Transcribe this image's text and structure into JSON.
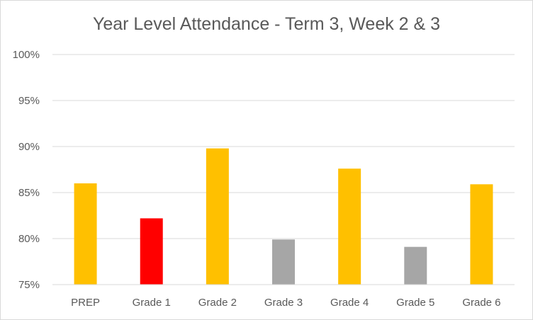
{
  "chart_data": {
    "type": "bar",
    "title": "Year Level Attendance - Term 3, Week 2 & 3",
    "categories": [
      "PREP",
      "Grade 1",
      "Grade 2",
      "Grade 3",
      "Grade 4",
      "Grade 5",
      "Grade 6"
    ],
    "values": [
      86.0,
      82.2,
      89.8,
      79.9,
      87.6,
      79.1,
      85.9
    ],
    "bar_colors": [
      "#ffc000",
      "#ff0000",
      "#ffc000",
      "#a6a6a6",
      "#ffc000",
      "#a6a6a6",
      "#ffc000"
    ],
    "ylim": [
      75,
      100
    ],
    "y_ticks": [
      75,
      80,
      85,
      90,
      95,
      100
    ],
    "y_tick_labels": [
      "75%",
      "80%",
      "85%",
      "90%",
      "95%",
      "100%"
    ],
    "xlabel": "",
    "ylabel": "",
    "grid": true,
    "legend": "none"
  }
}
